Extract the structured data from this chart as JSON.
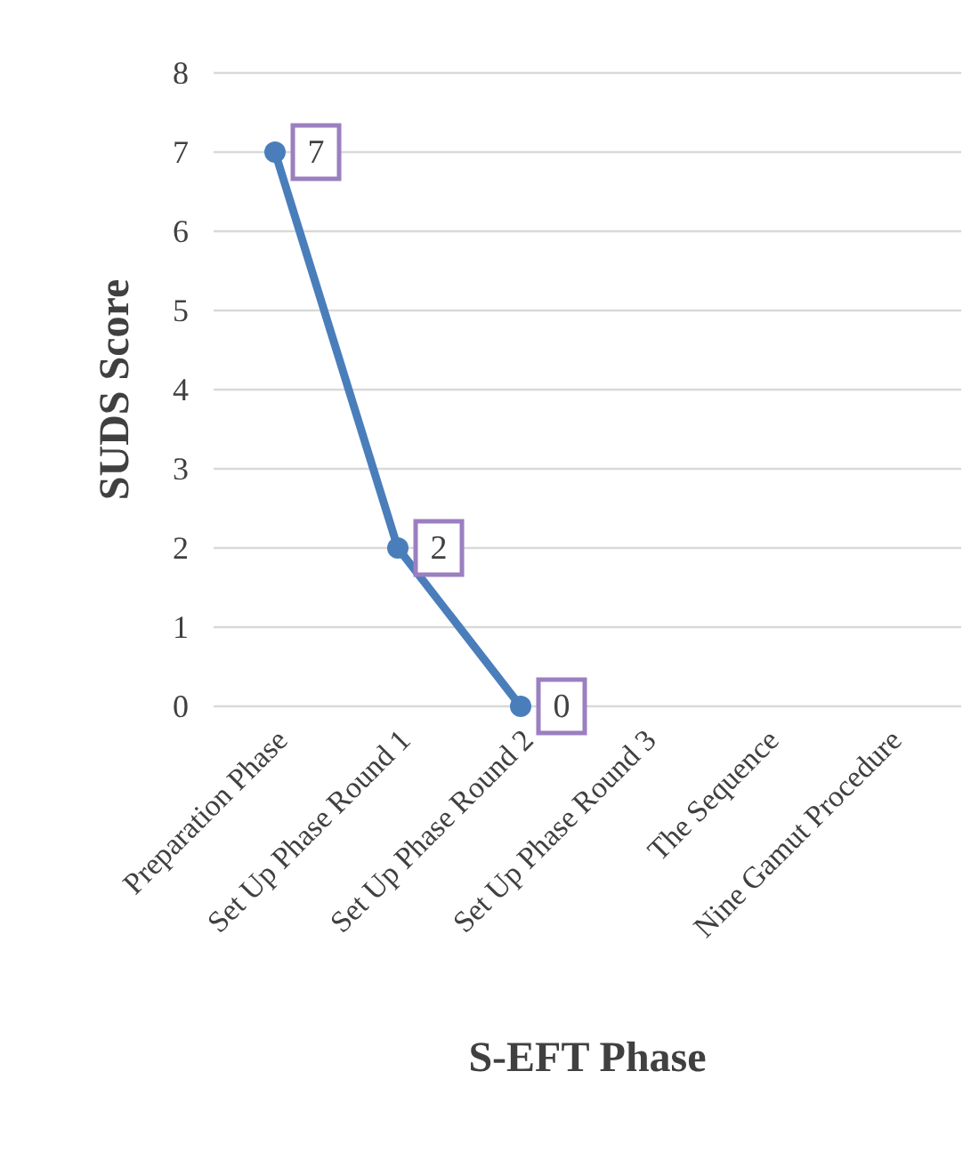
{
  "chart_data": {
    "type": "line",
    "xlabel": "S-EFT Phase",
    "ylabel": "SUDS Score",
    "categories": [
      "Preparation Phase",
      "Set Up Phase Round 1",
      "Set Up Phase Round 2",
      "Set Up Phase Round 3",
      "The Sequence",
      "Nine Gamut Procedure"
    ],
    "series": [
      {
        "color": "#4a7ebb",
        "values": [
          7,
          2,
          0,
          null,
          null,
          null
        ]
      }
    ],
    "ylim": [
      0,
      8
    ],
    "yticks": [
      0,
      1,
      2,
      3,
      4,
      5,
      6,
      7,
      8
    ],
    "grid": "y",
    "marker": "circle",
    "line_style": "solid",
    "data_labels": true
  }
}
